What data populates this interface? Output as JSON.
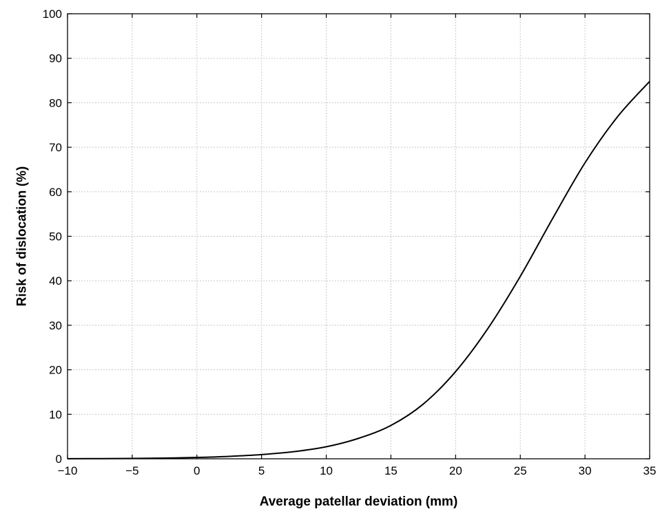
{
  "chart_data": {
    "type": "line",
    "title": "",
    "xlabel": "Average patellar deviation (mm)",
    "ylabel": "Risk of dislocation (%)",
    "xlim": [
      -10,
      35
    ],
    "ylim": [
      0,
      100
    ],
    "x_ticks": [
      -10,
      -5,
      0,
      5,
      10,
      15,
      20,
      25,
      30,
      35
    ],
    "x_tick_labels": [
      "−10",
      "−5",
      "0",
      "5",
      "10",
      "15",
      "20",
      "25",
      "30",
      "35"
    ],
    "y_ticks": [
      0,
      10,
      20,
      30,
      40,
      50,
      60,
      70,
      80,
      90,
      100
    ],
    "y_tick_labels": [
      "0",
      "10",
      "20",
      "30",
      "40",
      "50",
      "60",
      "70",
      "80",
      "90",
      "100"
    ],
    "grid": true,
    "series": [
      {
        "x": [
          -10,
          -7.5,
          -5,
          -2.5,
          0,
          2.5,
          5,
          7.5,
          10,
          12.5,
          15,
          17.5,
          20,
          22.5,
          25,
          27.5,
          30,
          32.5,
          35
        ],
        "y": [
          0.02,
          0.04,
          0.08,
          0.15,
          0.3,
          0.55,
          0.95,
          1.6,
          2.7,
          4.6,
          7.5,
          12.3,
          19.6,
          29.3,
          41.0,
          54.0,
          66.5,
          76.8,
          84.8
        ]
      }
    ],
    "colors": {
      "line": "#000000",
      "grid": "#c8c8c8",
      "frame": "#000000"
    }
  }
}
